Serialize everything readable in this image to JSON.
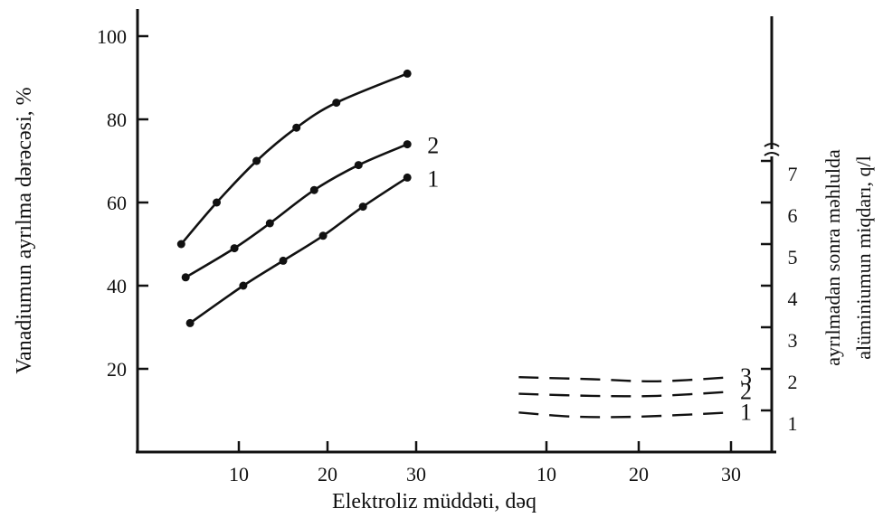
{
  "chart_data": {
    "type": "line",
    "xlabel": "Elektroliz müddəti, dəq",
    "ylabel_left": "Vanadiumun ayrılma dərəcəsi, %",
    "ylabel_right_line1": "ayrılmadan sonra məhlulda",
    "ylabel_right_line2": "alüminiumun miqdarı, q/l",
    "left_panel": {
      "xticks": [
        "10",
        "20",
        "30"
      ],
      "yticks": [
        "20",
        "40",
        "60",
        "80",
        "100"
      ],
      "ylim": [
        0,
        100
      ],
      "series": [
        {
          "name": "",
          "x": [
            3.5,
            7.5,
            12,
            16.5,
            21,
            29
          ],
          "y": [
            50,
            60,
            70,
            78,
            84,
            91
          ]
        },
        {
          "name": "2",
          "x": [
            4,
            9.5,
            13.5,
            18.5,
            23.5,
            29
          ],
          "y": [
            42,
            49,
            55,
            63,
            69,
            74
          ]
        },
        {
          "name": "1",
          "x": [
            4.5,
            10.5,
            15,
            19.5,
            24,
            29
          ],
          "y": [
            31,
            40,
            46,
            52,
            59,
            66
          ]
        }
      ]
    },
    "right_panel": {
      "xticks": [
        "10",
        "20",
        "30"
      ],
      "yticks": [
        "1",
        "2",
        "3",
        "4",
        "5",
        "6",
        "7"
      ],
      "ylim": [
        0,
        7
      ],
      "axis_break": true,
      "series": [
        {
          "name": "3",
          "x": [
            7,
            15,
            22,
            30
          ],
          "y": [
            1.8,
            1.75,
            1.7,
            1.8
          ]
        },
        {
          "name": "2",
          "x": [
            7,
            15,
            22,
            30
          ],
          "y": [
            1.4,
            1.35,
            1.35,
            1.45
          ]
        },
        {
          "name": "1",
          "x": [
            7,
            13,
            20,
            30
          ],
          "y": [
            0.95,
            0.85,
            0.85,
            0.95
          ]
        }
      ]
    },
    "grid": false,
    "legend": "none"
  }
}
